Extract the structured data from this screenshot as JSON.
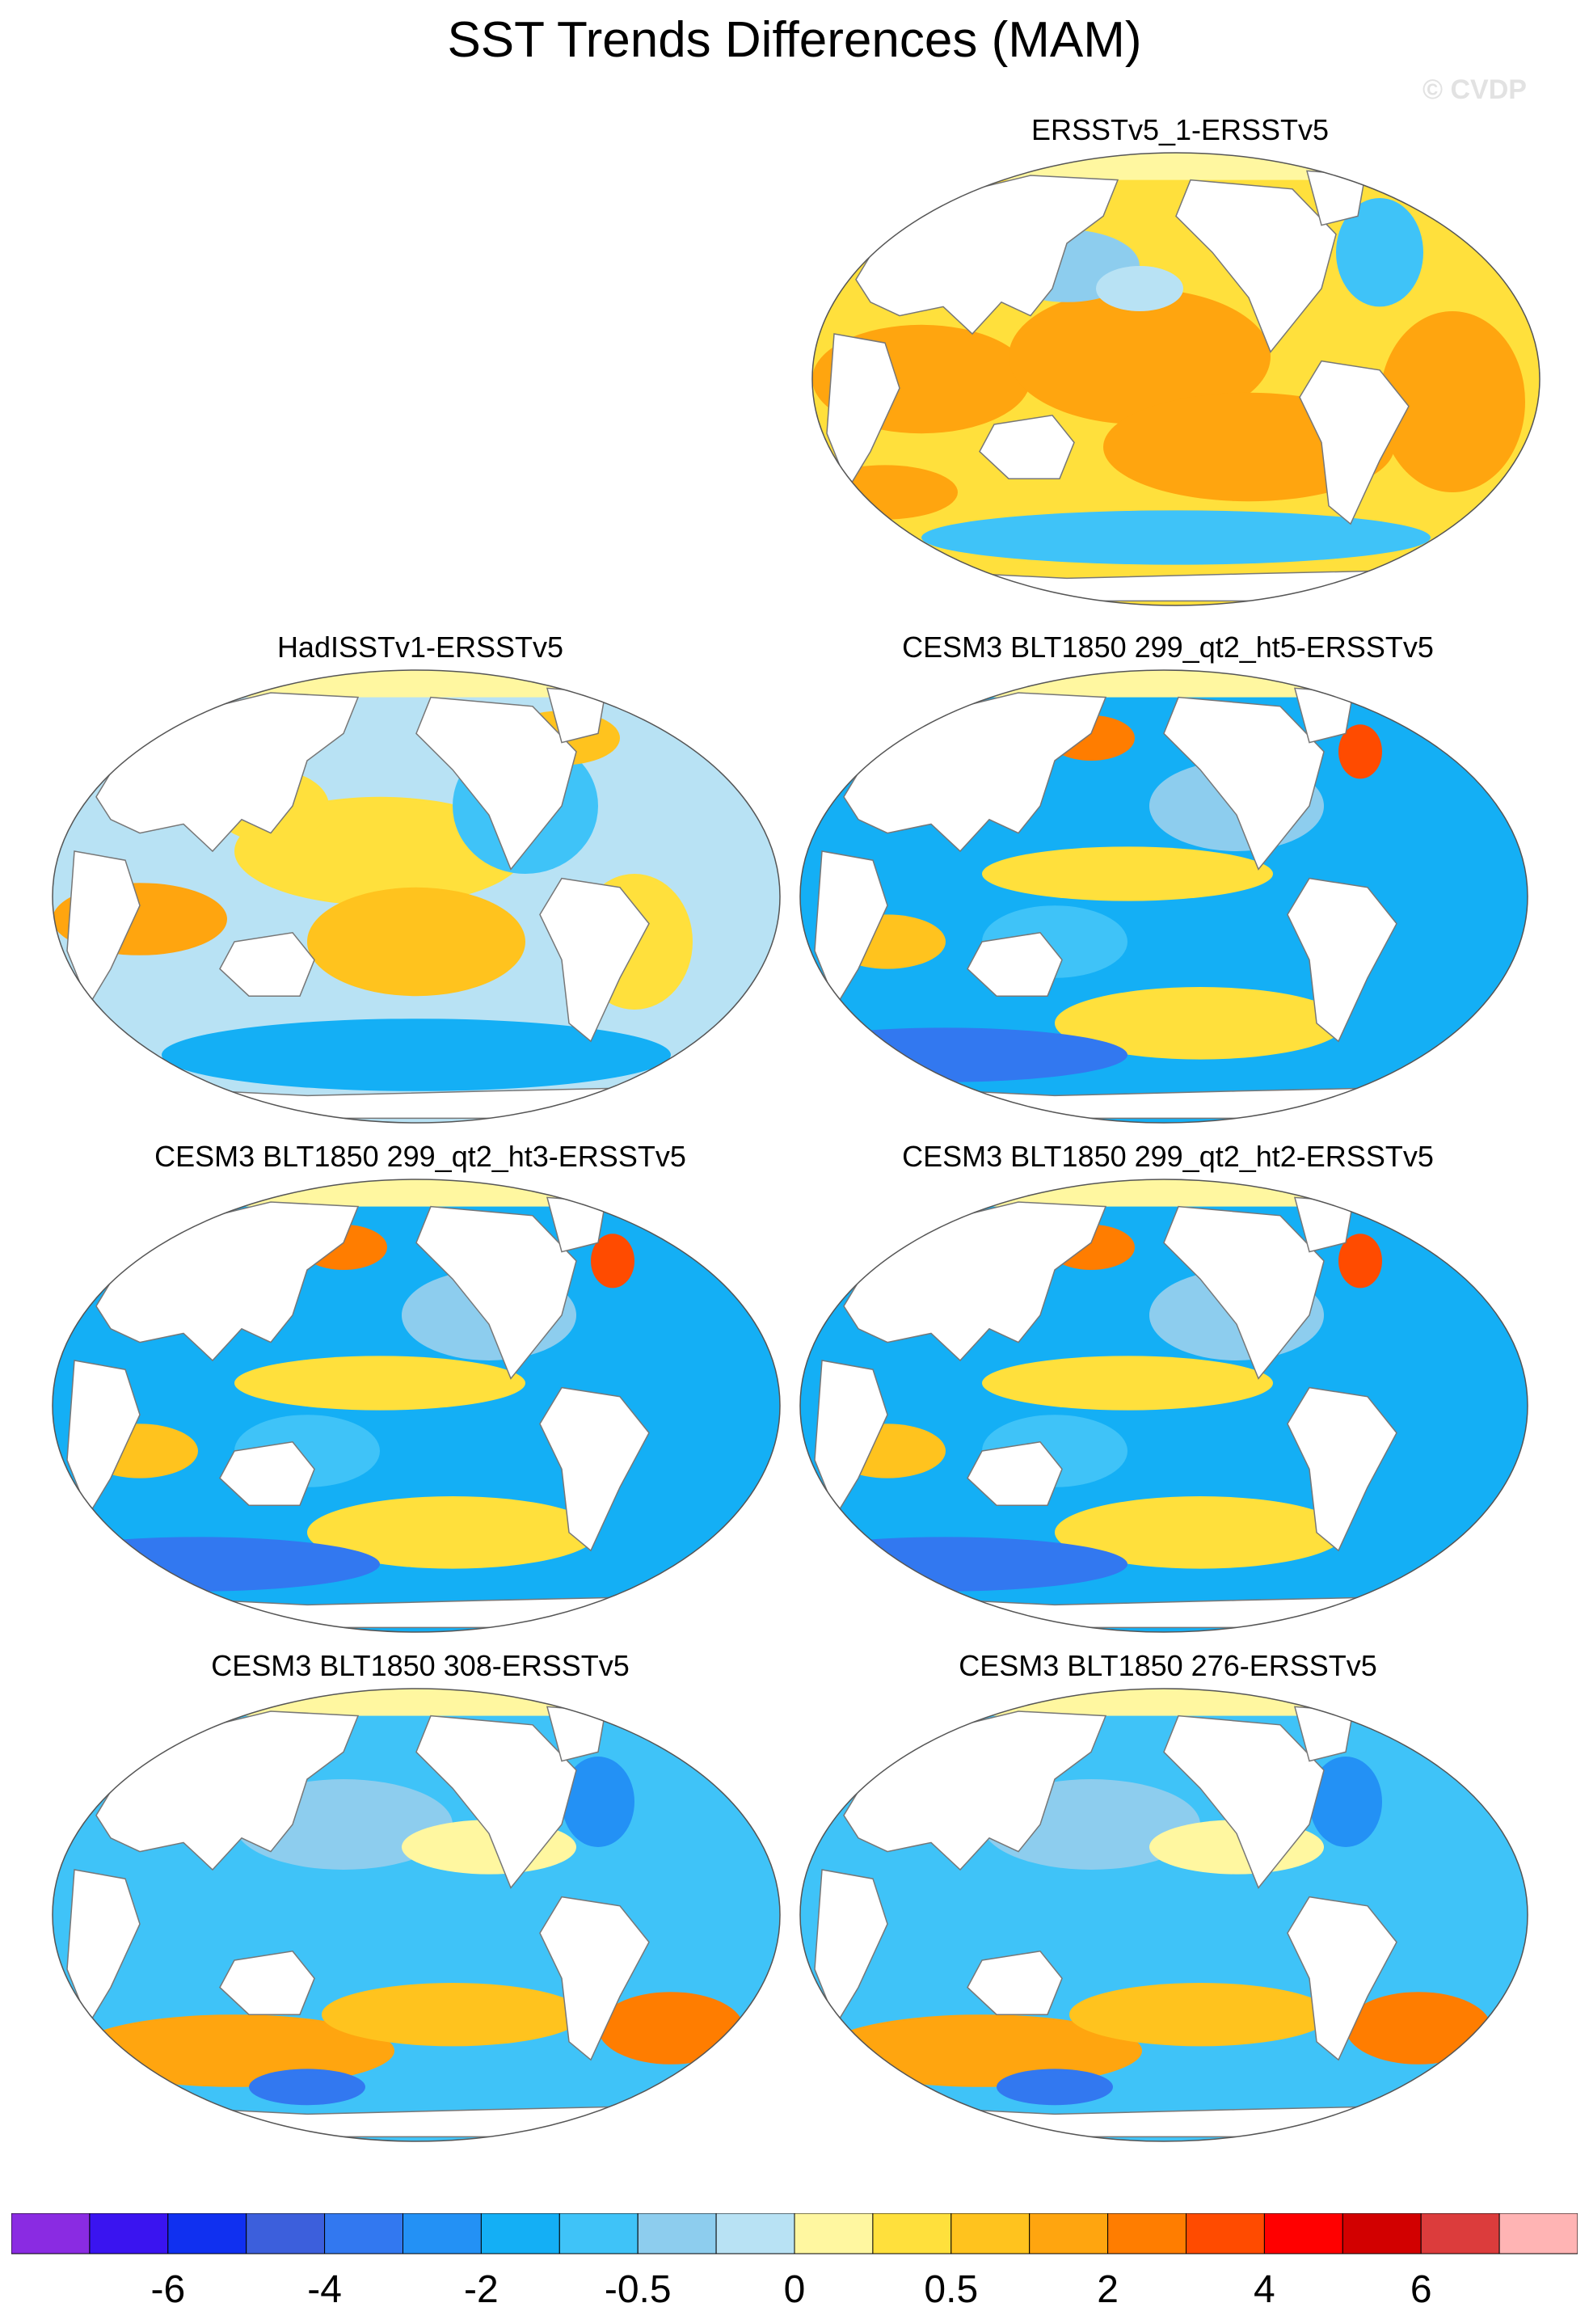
{
  "title": "SST Trends Differences (MAM)",
  "watermark": "© CVDP",
  "panels": [
    {
      "title": "ERSSTv5_1-ERSSTv5",
      "pattern": "warm"
    },
    {
      "title": "HadISSTv1-ERSSTv5",
      "pattern": "mixed"
    },
    {
      "title": "CESM3 BLT1850 299_qt2_ht5-ERSSTv5",
      "pattern": "cool"
    },
    {
      "title": "CESM3 BLT1850 299_qt2_ht3-ERSSTv5",
      "pattern": "cool"
    },
    {
      "title": "CESM3 BLT1850 299_qt2_ht2-ERSSTv5",
      "pattern": "cool"
    },
    {
      "title": "CESM3 BLT1850 308-ERSSTv5",
      "pattern": "southwarm"
    },
    {
      "title": "CESM3 BLT1850 276-ERSSTv5",
      "pattern": "southwarm"
    }
  ],
  "colorbar": {
    "colors": [
      "#8a2be2",
      "#3a14f0",
      "#1030f0",
      "#3c5fdc",
      "#3278f0",
      "#2391f5",
      "#14aff5",
      "#3fc3f8",
      "#8dcdee",
      "#b8e2f4",
      "#fff7a0",
      "#ffe03c",
      "#ffc31e",
      "#ffa50f",
      "#ff7d00",
      "#ff4b00",
      "#ff0000",
      "#d20000",
      "#dc3c3c",
      "#ffb4b4"
    ],
    "labels": [
      "-6",
      "-4",
      "-2",
      "-0.5",
      "0",
      "0.5",
      "2",
      "4",
      "6"
    ]
  },
  "continent_color": "#ffffff",
  "arctic_color": "#fff7a0"
}
